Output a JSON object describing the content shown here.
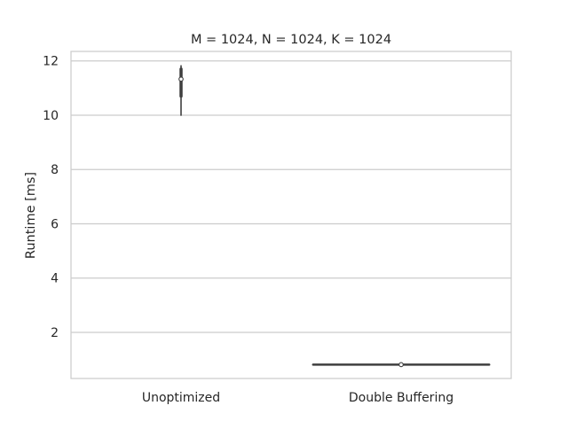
{
  "chart_data": {
    "type": "violin",
    "title": "M = 1024, N = 1024, K = 1024",
    "xlabel": "",
    "ylabel": "Runtime [ms]",
    "categories": [
      "Unoptimized",
      "Double Buffering"
    ],
    "ylim": [
      0.3,
      12.35
    ],
    "yticks": [
      2,
      4,
      6,
      8,
      10,
      12
    ],
    "grid": "horizontal",
    "series": [
      {
        "category": "Unoptimized",
        "min": 10.0,
        "q1": 10.7,
        "median": 11.33,
        "q3": 11.7,
        "max": 11.82
      },
      {
        "category": "Double Buffering",
        "min": 0.8,
        "q1": 0.8,
        "median": 0.81,
        "q3": 0.81,
        "max": 0.82
      }
    ],
    "colors": {
      "grid": "#cccccc",
      "frame": "#cccccc",
      "box": "#3f3f3f",
      "text": "#262626",
      "median_fill": "#ffffff"
    }
  }
}
